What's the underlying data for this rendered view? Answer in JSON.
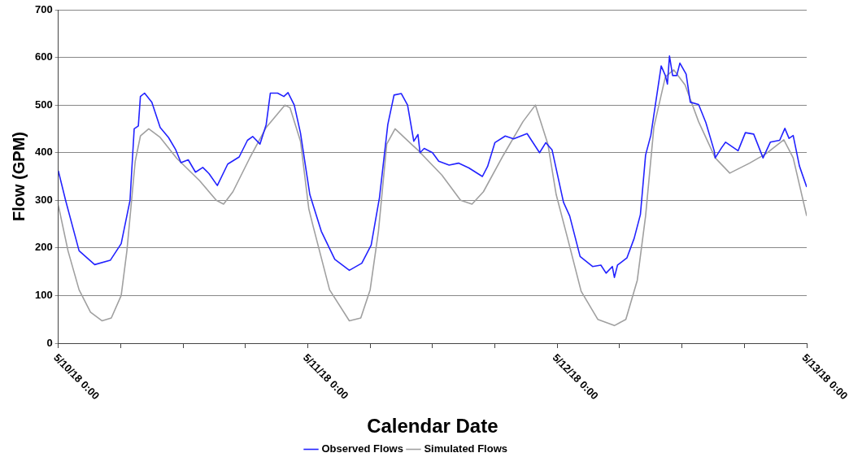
{
  "chart_data": {
    "type": "line",
    "xlabel": "Calendar Date",
    "ylabel": "Flow (GPM)",
    "xlim": [
      "--05-10T00:00",
      "--05-13T00:00"
    ],
    "xticks": [
      {
        "value": "--05-10T00:00",
        "label": "5/10/18 0:00"
      },
      {
        "value": "--05-10T06:00",
        "label": null
      },
      {
        "value": "--05-10T12:00",
        "label": null
      },
      {
        "value": "--05-10T18:00",
        "label": null
      },
      {
        "value": "--05-11T00:00",
        "label": "5/11/18 0:00"
      },
      {
        "value": "--05-11T06:00",
        "label": null
      },
      {
        "value": "--05-11T12:00",
        "label": null
      },
      {
        "value": "--05-11T18:00",
        "label": null
      },
      {
        "value": "--05-12T00:00",
        "label": "5/12/18 0:00"
      },
      {
        "value": "--05-12T06:00",
        "label": null
      },
      {
        "value": "--05-12T12:00",
        "label": null
      },
      {
        "value": "--05-12T18:00",
        "label": null
      },
      {
        "value": "--05-13T00:00",
        "label": "5/13/18 0:00"
      }
    ],
    "ylim": [
      0,
      700
    ],
    "yticks": [
      0,
      100,
      200,
      300,
      400,
      500,
      600,
      700
    ],
    "grid": "y",
    "legend": "bottom",
    "marker": "none",
    "line_style": "solid",
    "series": [
      {
        "name": "Observed Flows",
        "color": "#2222ff",
        "x": [
          "--05-10T00:00",
          "--05-10T00:42",
          "--05-10T02:00",
          "--05-10T03:30",
          "--05-10T05:00",
          "--05-10T06:03",
          "--05-10T06:54",
          "--05-10T07:18",
          "--05-10T07:42",
          "--05-10T07:54",
          "--05-10T08:18",
          "--05-10T09:00",
          "--05-10T09:48",
          "--05-10T10:36",
          "--05-10T11:18",
          "--05-10T11:48",
          "--05-10T12:30",
          "--05-10T13:12",
          "--05-10T13:54",
          "--05-10T14:30",
          "--05-10T15:18",
          "--05-10T16:18",
          "--05-10T17:24",
          "--05-10T18:12",
          "--05-10T18:42",
          "--05-10T19:24",
          "--05-10T20:00",
          "--05-10T20:24",
          "--05-10T21:06",
          "--05-10T21:42",
          "--05-10T22:06",
          "--05-10T22:42",
          "--05-10T23:18",
          "--05-11T00:12",
          "--05-11T01:18",
          "--05-11T02:36",
          "--05-11T04:00",
          "--05-11T05:12",
          "--05-11T06:06",
          "--05-11T06:54",
          "--05-11T07:42",
          "--05-11T08:18",
          "--05-11T09:00",
          "--05-11T09:36",
          "--05-11T10:12",
          "--05-11T10:36",
          "--05-11T10:48",
          "--05-11T11:12",
          "--05-11T12:00",
          "--05-11T12:36",
          "--05-11T13:36",
          "--05-11T14:30",
          "--05-11T15:30",
          "--05-11T16:48",
          "--05-11T17:18",
          "--05-11T18:00",
          "--05-11T19:00",
          "--05-11T19:48",
          "--05-11T21:06",
          "--05-11T22:18",
          "--05-11T22:54",
          "--05-11T23:30",
          "--05-12T00:36",
          "--05-12T01:12",
          "--05-12T02:12",
          "--05-12T03:24",
          "--05-12T04:12",
          "--05-12T04:42",
          "--05-12T05:18",
          "--05-12T05:30",
          "--05-12T05:48",
          "--05-12T06:42",
          "--05-12T07:24",
          "--05-12T08:00",
          "--05-12T08:30",
          "--05-12T09:00",
          "--05-12T10:00",
          "--05-12T10:24",
          "--05-12T10:36",
          "--05-12T10:48",
          "--05-12T11:06",
          "--05-12T11:30",
          "--05-12T11:48",
          "--05-12T12:24",
          "--05-12T12:48",
          "--05-12T13:36",
          "--05-12T14:18",
          "--05-12T15:06",
          "--05-12T15:12",
          "--05-12T15:48",
          "--05-12T16:12",
          "--05-12T17:24",
          "--05-12T18:06",
          "--05-12T18:54",
          "--05-12T19:48",
          "--05-12T20:30",
          "--05-12T21:24",
          "--05-12T21:54",
          "--05-12T22:18",
          "--05-12T22:42",
          "--05-12T23:18",
          "--05-13T00:00"
        ],
        "values": [
          362,
          300,
          194,
          165,
          174,
          209,
          300,
          450,
          456,
          518,
          525,
          506,
          453,
          432,
          406,
          379,
          385,
          359,
          369,
          356,
          331,
          376,
          391,
          426,
          434,
          418,
          459,
          525,
          525,
          518,
          526,
          500,
          441,
          312,
          235,
          176,
          153,
          168,
          206,
          306,
          459,
          521,
          524,
          500,
          424,
          438,
          400,
          409,
          400,
          382,
          374,
          378,
          368,
          350,
          371,
          421,
          435,
          429,
          440,
          400,
          421,
          406,
          296,
          267,
          182,
          161,
          164,
          147,
          161,
          138,
          164,
          179,
          220,
          270,
          395,
          436,
          582,
          562,
          544,
          603,
          562,
          562,
          588,
          565,
          506,
          501,
          463,
          404,
          389,
          410,
          422,
          404,
          442,
          439,
          389,
          422,
          426,
          451,
          430,
          436,
          372,
          328
        ]
      },
      {
        "name": "Simulated Flows",
        "color": "#a0a0a0",
        "x": [
          "--05-10T00:00",
          "--05-10T00:56",
          "--05-10T02:00",
          "--05-10T03:06",
          "--05-10T04:12",
          "--05-10T05:06",
          "--05-10T06:03",
          "--05-10T06:36",
          "--05-10T07:24",
          "--05-10T07:54",
          "--05-10T08:42",
          "--05-10T09:48",
          "--05-10T11:24",
          "--05-10T13:36",
          "--05-10T15:12",
          "--05-10T15:54",
          "--05-10T16:48",
          "--05-10T18:24",
          "--05-10T20:00",
          "--05-10T21:48",
          "--05-10T22:18",
          "--05-10T23:18",
          "--05-11T00:06",
          "--05-11T00:30",
          "--05-11T02:06",
          "--05-11T04:00",
          "--05-11T05:06",
          "--05-11T06:00",
          "--05-11T06:48",
          "--05-11T07:36",
          "--05-11T08:24",
          "--05-11T10:42",
          "--05-11T12:54",
          "--05-11T14:42",
          "--05-11T15:48",
          "--05-11T16:54",
          "--05-11T18:48",
          "--05-11T20:42",
          "--05-11T21:54",
          "--05-11T23:06",
          "--05-11T23:54",
          "--05-12T01:00",
          "--05-12T02:18",
          "--05-12T03:54",
          "--05-12T05:30",
          "--05-12T06:36",
          "--05-12T07:42",
          "--05-12T08:30",
          "--05-12T09:18",
          "--05-12T10:24",
          "--05-12T11:12",
          "--05-12T12:18",
          "--05-12T13:36",
          "--05-12T15:12",
          "--05-12T16:36",
          "--05-12T18:30",
          "--05-12T20:06",
          "--05-12T21:48",
          "--05-12T22:42",
          "--05-13T00:00"
        ],
        "values": [
          290,
          194,
          112,
          65,
          47,
          53,
          100,
          194,
          382,
          435,
          450,
          432,
          388,
          341,
          300,
          292,
          318,
          388,
          453,
          500,
          494,
          424,
          282,
          247,
          112,
          47,
          53,
          112,
          235,
          418,
          450,
          403,
          353,
          300,
          292,
          318,
          394,
          465,
          500,
          418,
          312,
          220,
          109,
          50,
          37,
          50,
          132,
          267,
          454,
          559,
          574,
          542,
          465,
          389,
          357,
          378,
          398,
          427,
          389,
          267
        ]
      }
    ]
  }
}
